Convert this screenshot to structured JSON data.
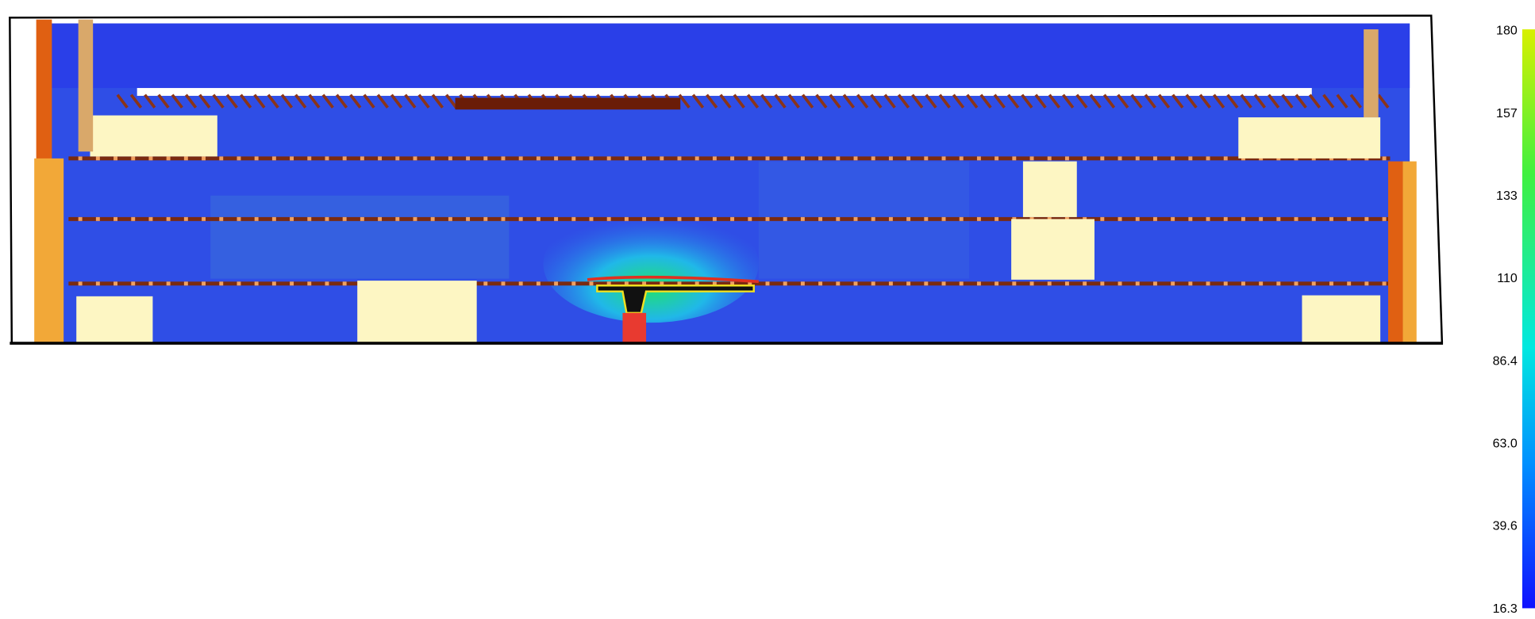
{
  "colorbar": {
    "labels": [
      "180",
      "157",
      "133",
      "110",
      "86.4",
      "63.0",
      "39.6",
      "16.3"
    ]
  }
}
